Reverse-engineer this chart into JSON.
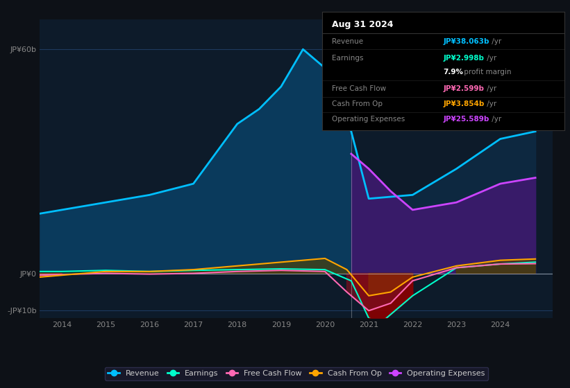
{
  "bg_color": "#0d1117",
  "chart_bg": "#0d1b2a",
  "grid_color": "#1e3a5f",
  "ylim": [
    -12,
    68
  ],
  "yticks": [
    -10,
    0,
    60
  ],
  "ytick_labels": [
    "-JP¥10b",
    "JP¥0",
    "JP¥60b"
  ],
  "xlim_start": 2013.5,
  "xlim_end": 2025.2,
  "xticks": [
    2014,
    2015,
    2016,
    2017,
    2018,
    2019,
    2020,
    2021,
    2022,
    2023,
    2024
  ],
  "forecast_start": 2020.6,
  "revenue": {
    "x": [
      2013.5,
      2014,
      2015,
      2016,
      2017,
      2018,
      2018.5,
      2019,
      2019.5,
      2020,
      2020.6,
      2021,
      2022,
      2023,
      2024,
      2024.8
    ],
    "y": [
      16,
      17,
      19,
      21,
      24,
      40,
      44,
      50,
      60,
      55,
      38,
      20,
      21,
      28,
      36,
      38
    ],
    "color": "#00bfff",
    "fill_hist": "#0a3a5c",
    "fill_fore": "#0d2b45"
  },
  "operating_expenses": {
    "x": [
      2020.6,
      2021,
      2021.5,
      2022,
      2023,
      2024,
      2024.8
    ],
    "y": [
      32,
      28,
      22,
      17,
      19,
      24,
      25.6
    ],
    "color": "#cc44ff",
    "fill_color": "#3d1a6e"
  },
  "earnings": {
    "x": [
      2013.5,
      2014,
      2015,
      2016,
      2017,
      2018,
      2019,
      2020,
      2020.6,
      2021,
      2021.3,
      2022,
      2023,
      2024,
      2024.8
    ],
    "y": [
      0.5,
      0.5,
      0.8,
      0.5,
      0.8,
      1.0,
      1.2,
      1.0,
      -2,
      -12,
      -13,
      -6,
      1.5,
      2.5,
      3.0
    ],
    "color": "#00ffcc",
    "fill_pos": "#003322",
    "fill_neg": "#8b0000"
  },
  "free_cash_flow": {
    "x": [
      2013.5,
      2014,
      2015,
      2016,
      2017,
      2018,
      2019,
      2020,
      2020.5,
      2021,
      2021.5,
      2022,
      2023,
      2024,
      2024.8
    ],
    "y": [
      -0.5,
      -0.3,
      0.0,
      -0.2,
      0.0,
      0.5,
      0.8,
      0.5,
      -5,
      -10,
      -8,
      -2,
      1.5,
      2.5,
      2.6
    ],
    "color": "#ff69b4",
    "fill_pos": "#552244",
    "fill_neg": "#7a1020"
  },
  "cash_from_op": {
    "x": [
      2013.5,
      2014,
      2015,
      2016,
      2017,
      2018,
      2019,
      2020,
      2020.5,
      2021,
      2021.5,
      2022,
      2023,
      2024,
      2024.8
    ],
    "y": [
      -1.0,
      -0.5,
      0.5,
      0.5,
      1.0,
      2.0,
      3.0,
      4.0,
      1.0,
      -6,
      -5,
      -1,
      2.0,
      3.5,
      3.85
    ],
    "color": "#ffa500",
    "fill_pos": "#554400",
    "fill_neg": "#8b3000"
  },
  "tooltip": {
    "title": "Aug 31 2024",
    "rows": [
      {
        "label": "Revenue",
        "value": "JP¥38.063b",
        "suffix": " /yr",
        "value_color": "#00bfff",
        "sep": true
      },
      {
        "label": "Earnings",
        "value": "JP¥2.998b",
        "suffix": " /yr",
        "value_color": "#00ffcc",
        "sep": false
      },
      {
        "label": "",
        "value": "7.9%",
        "suffix": " profit margin",
        "value_color": "#ffffff",
        "sep": true
      },
      {
        "label": "Free Cash Flow",
        "value": "JP¥2.599b",
        "suffix": " /yr",
        "value_color": "#ff69b4",
        "sep": true
      },
      {
        "label": "Cash From Op",
        "value": "JP¥3.854b",
        "suffix": " /yr",
        "value_color": "#ffa500",
        "sep": true
      },
      {
        "label": "Operating Expenses",
        "value": "JP¥25.589b",
        "suffix": " /yr",
        "value_color": "#cc44ff",
        "sep": false
      }
    ]
  },
  "legend": [
    {
      "label": "Revenue",
      "color": "#00bfff"
    },
    {
      "label": "Earnings",
      "color": "#00ffcc"
    },
    {
      "label": "Free Cash Flow",
      "color": "#ff69b4"
    },
    {
      "label": "Cash From Op",
      "color": "#ffa500"
    },
    {
      "label": "Operating Expenses",
      "color": "#cc44ff"
    }
  ]
}
